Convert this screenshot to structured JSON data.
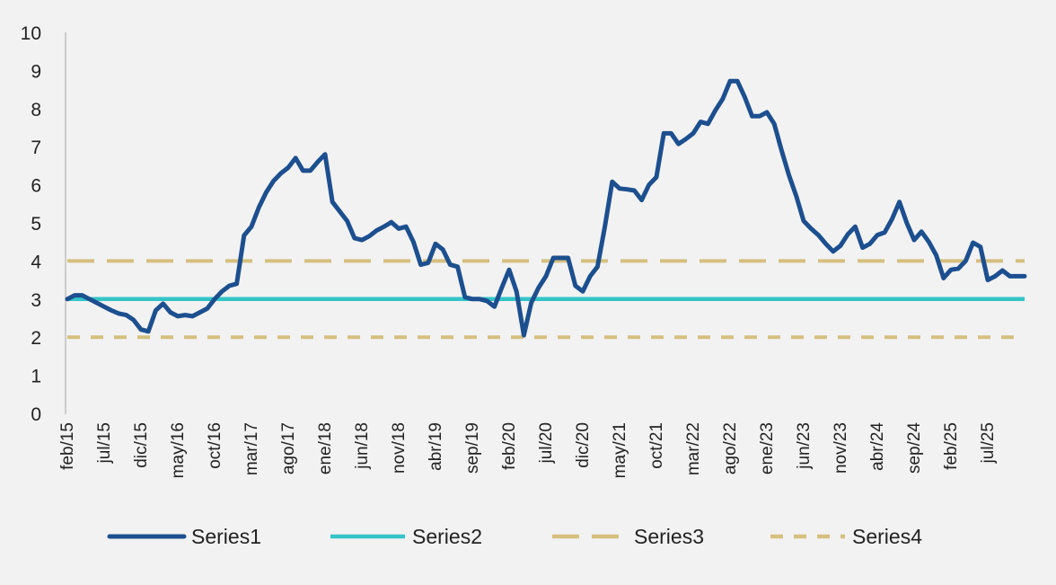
{
  "chart_data": {
    "type": "line",
    "title": "",
    "xlabel": "",
    "ylabel": "",
    "ylim": [
      0,
      10
    ],
    "yticks": [
      0,
      1,
      2,
      3,
      4,
      5,
      6,
      7,
      8,
      9,
      10
    ],
    "grid": false,
    "legend_position": "bottom",
    "x_tick_labels": [
      "feb/15",
      "jul/15",
      "dic/15",
      "may/16",
      "oct/16",
      "mar/17",
      "ago/17",
      "ene/18",
      "jun/18",
      "nov/18",
      "abr/19",
      "sep/19",
      "feb/20",
      "jul/20",
      "dic/20",
      "may/21",
      "oct/21",
      "mar/22",
      "ago/22",
      "ene/23",
      "jun/23",
      "nov/23",
      "abr/24",
      "sep/24",
      "feb/25",
      "jul/25"
    ],
    "categories": [
      "feb/15",
      "mar/15",
      "abr/15",
      "may/15",
      "jun/15",
      "jul/15",
      "ago/15",
      "sep/15",
      "oct/15",
      "nov/15",
      "dic/15",
      "ene/16",
      "feb/16",
      "mar/16",
      "abr/16",
      "may/16",
      "jun/16",
      "jul/16",
      "ago/16",
      "sep/16",
      "oct/16",
      "nov/16",
      "dic/16",
      "ene/17",
      "feb/17",
      "mar/17",
      "abr/17",
      "may/17",
      "jun/17",
      "jul/17",
      "ago/17",
      "sep/17",
      "oct/17",
      "nov/17",
      "dic/17",
      "ene/18",
      "feb/18",
      "mar/18",
      "abr/18",
      "may/18",
      "jun/18",
      "jul/18",
      "ago/18",
      "sep/18",
      "oct/18",
      "nov/18",
      "dic/18",
      "ene/19",
      "feb/19",
      "mar/19",
      "abr/19",
      "may/19",
      "jun/19",
      "jul/19",
      "ago/19",
      "sep/19",
      "oct/19",
      "nov/19",
      "dic/19",
      "ene/20",
      "feb/20",
      "mar/20",
      "abr/20",
      "may/20",
      "jun/20",
      "jul/20",
      "ago/20",
      "sep/20",
      "oct/20",
      "nov/20",
      "dic/20",
      "ene/21",
      "feb/21",
      "mar/21",
      "abr/21",
      "may/21",
      "jun/21",
      "jul/21",
      "ago/21",
      "sep/21",
      "oct/21",
      "nov/21",
      "dic/21",
      "ene/22",
      "feb/22",
      "mar/22",
      "abr/22",
      "may/22",
      "jun/22",
      "jul/22",
      "ago/22",
      "sep/22",
      "oct/22",
      "nov/22",
      "dic/22",
      "ene/23",
      "feb/23",
      "mar/23",
      "abr/23",
      "may/23",
      "jun/23",
      "jul/23",
      "ago/23",
      "sep/23",
      "oct/23",
      "nov/23",
      "dic/23",
      "ene/24",
      "feb/24",
      "mar/24",
      "abr/24",
      "may/24",
      "jun/24",
      "jul/24",
      "ago/24",
      "sep/24",
      "oct/24",
      "nov/24",
      "dic/24",
      "ene/25",
      "feb/25",
      "mar/25",
      "abr/25",
      "may/25",
      "jun/25",
      "jul/25",
      "ago/25",
      "sep/25",
      "oct/25",
      "nov/25",
      "dic/25"
    ],
    "series": [
      {
        "name": "Series1",
        "color": "#1c4f8f",
        "style": "solid",
        "values": [
          3.0,
          3.1,
          3.1,
          3.0,
          2.9,
          2.8,
          2.7,
          2.62,
          2.58,
          2.45,
          2.2,
          2.15,
          2.7,
          2.88,
          2.65,
          2.55,
          2.58,
          2.55,
          2.65,
          2.75,
          3.0,
          3.2,
          3.35,
          3.4,
          4.67,
          4.9,
          5.4,
          5.8,
          6.1,
          6.3,
          6.45,
          6.7,
          6.37,
          6.37,
          6.6,
          6.8,
          5.55,
          5.3,
          5.05,
          4.6,
          4.55,
          4.65,
          4.8,
          4.9,
          5.02,
          4.85,
          4.9,
          4.5,
          3.9,
          3.95,
          4.45,
          4.3,
          3.9,
          3.85,
          3.05,
          3.0,
          3.0,
          2.95,
          2.8,
          3.3,
          3.77,
          3.2,
          2.05,
          2.9,
          3.3,
          3.6,
          4.08,
          4.08,
          4.08,
          3.35,
          3.2,
          3.6,
          3.85,
          4.9,
          6.08,
          5.9,
          5.88,
          5.85,
          5.6,
          6.0,
          6.2,
          7.35,
          7.35,
          7.07,
          7.2,
          7.35,
          7.65,
          7.6,
          7.95,
          8.25,
          8.72,
          8.72,
          8.3,
          7.8,
          7.8,
          7.9,
          7.6,
          6.9,
          6.25,
          5.7,
          5.05,
          4.85,
          4.68,
          4.45,
          4.25,
          4.4,
          4.7,
          4.9,
          4.35,
          4.45,
          4.68,
          4.75,
          5.1,
          5.55,
          5.0,
          4.55,
          4.77,
          4.5,
          4.15,
          3.55,
          3.77,
          3.8,
          4.0,
          4.48,
          4.37,
          3.5,
          3.6,
          3.75,
          3.6,
          3.6,
          3.6
        ]
      },
      {
        "name": "Series2",
        "color": "#33c4c8",
        "style": "solid",
        "constant": 3
      },
      {
        "name": "Series3",
        "color": "#d6bf7f",
        "style": "long-dash",
        "constant": 4
      },
      {
        "name": "Series4",
        "color": "#d6bf7f",
        "style": "short-dash",
        "constant": 2
      }
    ]
  }
}
